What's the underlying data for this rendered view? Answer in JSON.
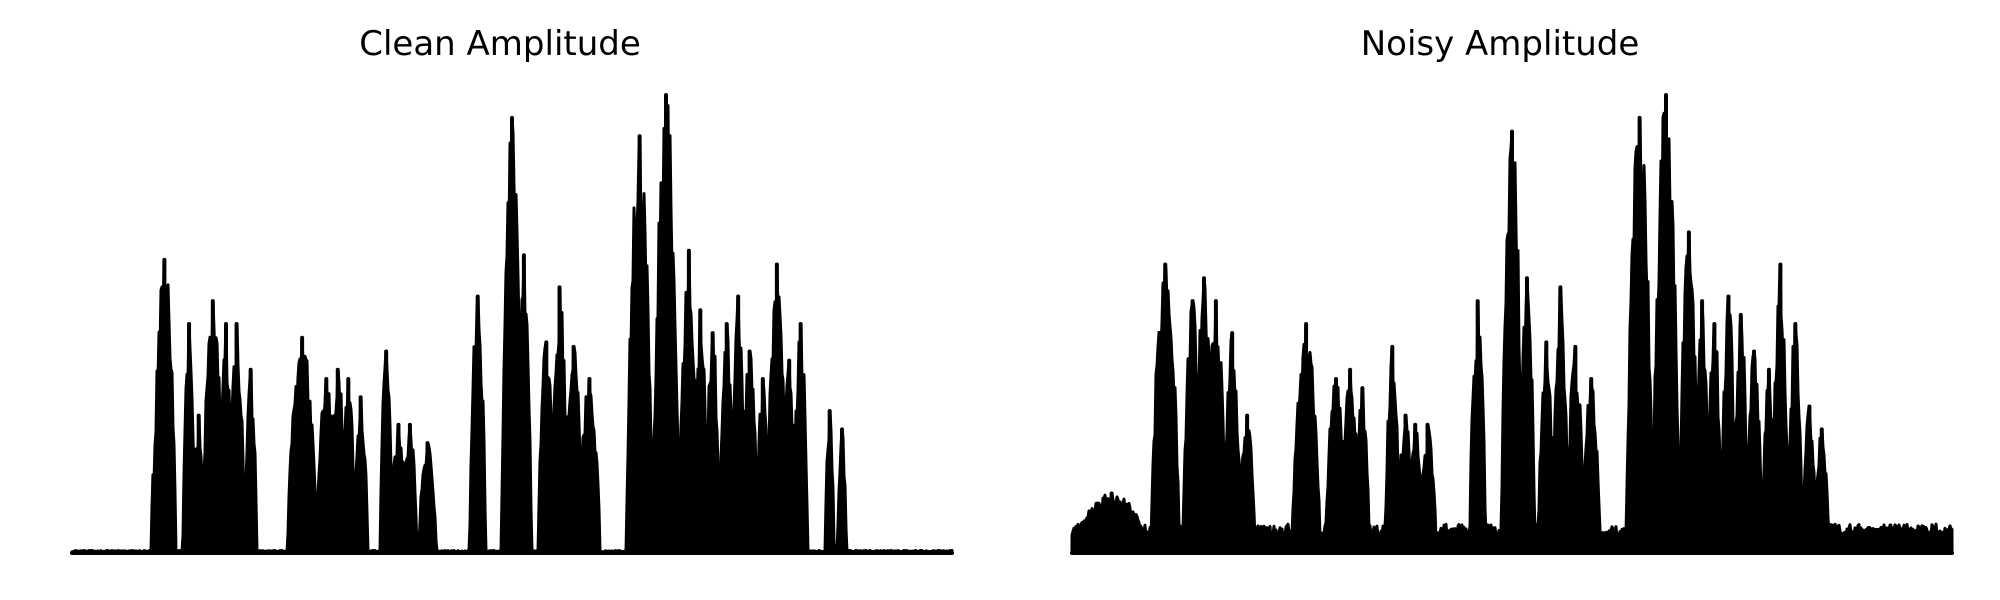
{
  "chart_data": [
    {
      "type": "area",
      "title": "Clean Amplitude",
      "xlabel": "",
      "ylabel": "",
      "axes_visible": false,
      "grid": false,
      "line_color": "#000000",
      "fill_color": "#000000",
      "x_range": [
        0,
        1
      ],
      "ylim": [
        0,
        1.0
      ],
      "noise_floor": 0.004,
      "bursts": [
        {
          "start": 0.09,
          "end": 0.095,
          "peak": 0.17
        },
        {
          "start": 0.092,
          "end": 0.118,
          "peak": 0.64
        },
        {
          "start": 0.126,
          "end": 0.14,
          "peak": 0.5
        },
        {
          "start": 0.138,
          "end": 0.15,
          "peak": 0.3
        },
        {
          "start": 0.148,
          "end": 0.172,
          "peak": 0.55
        },
        {
          "start": 0.168,
          "end": 0.182,
          "peak": 0.5
        },
        {
          "start": 0.178,
          "end": 0.196,
          "peak": 0.5
        },
        {
          "start": 0.196,
          "end": 0.21,
          "peak": 0.4
        },
        {
          "start": 0.245,
          "end": 0.278,
          "peak": 0.47
        },
        {
          "start": 0.278,
          "end": 0.3,
          "peak": 0.38
        },
        {
          "start": 0.292,
          "end": 0.312,
          "peak": 0.4
        },
        {
          "start": 0.306,
          "end": 0.322,
          "peak": 0.38
        },
        {
          "start": 0.32,
          "end": 0.336,
          "peak": 0.34
        },
        {
          "start": 0.35,
          "end": 0.364,
          "peak": 0.44
        },
        {
          "start": 0.362,
          "end": 0.38,
          "peak": 0.28
        },
        {
          "start": 0.376,
          "end": 0.392,
          "peak": 0.28
        },
        {
          "start": 0.394,
          "end": 0.414,
          "peak": 0.24
        },
        {
          "start": 0.452,
          "end": 0.47,
          "peak": 0.56
        },
        {
          "start": 0.488,
          "end": 0.512,
          "peak": 0.95
        },
        {
          "start": 0.505,
          "end": 0.522,
          "peak": 0.65
        },
        {
          "start": 0.53,
          "end": 0.548,
          "peak": 0.46
        },
        {
          "start": 0.544,
          "end": 0.564,
          "peak": 0.58
        },
        {
          "start": 0.56,
          "end": 0.58,
          "peak": 0.45
        },
        {
          "start": 0.576,
          "end": 0.6,
          "peak": 0.38
        },
        {
          "start": 0.63,
          "end": 0.66,
          "peak": 0.91
        },
        {
          "start": 0.66,
          "end": 0.69,
          "peak": 1.0
        },
        {
          "start": 0.69,
          "end": 0.712,
          "peak": 0.66
        },
        {
          "start": 0.706,
          "end": 0.722,
          "peak": 0.53
        },
        {
          "start": 0.72,
          "end": 0.736,
          "peak": 0.48
        },
        {
          "start": 0.736,
          "end": 0.752,
          "peak": 0.5
        },
        {
          "start": 0.75,
          "end": 0.764,
          "peak": 0.56
        },
        {
          "start": 0.76,
          "end": 0.78,
          "peak": 0.44
        },
        {
          "start": 0.778,
          "end": 0.792,
          "peak": 0.38
        },
        {
          "start": 0.79,
          "end": 0.812,
          "peak": 0.63
        },
        {
          "start": 0.808,
          "end": 0.822,
          "peak": 0.42
        },
        {
          "start": 0.82,
          "end": 0.836,
          "peak": 0.5
        },
        {
          "start": 0.856,
          "end": 0.866,
          "peak": 0.31
        },
        {
          "start": 0.87,
          "end": 0.88,
          "peak": 0.27
        }
      ]
    },
    {
      "type": "area",
      "title": "Noisy Amplitude",
      "xlabel": "",
      "ylabel": "",
      "axes_visible": false,
      "grid": false,
      "line_color": "#000000",
      "fill_color": "#000000",
      "x_range": [
        0,
        1
      ],
      "ylim": [
        0,
        1.0
      ],
      "noise_floor": 0.045,
      "bursts": [
        {
          "start": 0.0,
          "end": 0.09,
          "peak": 0.13
        },
        {
          "start": 0.09,
          "end": 0.122,
          "peak": 0.63
        },
        {
          "start": 0.126,
          "end": 0.148,
          "peak": 0.55
        },
        {
          "start": 0.14,
          "end": 0.16,
          "peak": 0.6
        },
        {
          "start": 0.152,
          "end": 0.175,
          "peak": 0.55
        },
        {
          "start": 0.172,
          "end": 0.192,
          "peak": 0.48
        },
        {
          "start": 0.19,
          "end": 0.208,
          "peak": 0.3
        },
        {
          "start": 0.25,
          "end": 0.282,
          "peak": 0.5
        },
        {
          "start": 0.288,
          "end": 0.312,
          "peak": 0.38
        },
        {
          "start": 0.304,
          "end": 0.328,
          "peak": 0.4
        },
        {
          "start": 0.322,
          "end": 0.338,
          "peak": 0.36
        },
        {
          "start": 0.356,
          "end": 0.372,
          "peak": 0.45
        },
        {
          "start": 0.37,
          "end": 0.388,
          "peak": 0.3
        },
        {
          "start": 0.382,
          "end": 0.398,
          "peak": 0.28
        },
        {
          "start": 0.394,
          "end": 0.414,
          "peak": 0.28
        },
        {
          "start": 0.452,
          "end": 0.47,
          "peak": 0.55
        },
        {
          "start": 0.488,
          "end": 0.512,
          "peak": 0.92
        },
        {
          "start": 0.508,
          "end": 0.526,
          "peak": 0.6
        },
        {
          "start": 0.53,
          "end": 0.548,
          "peak": 0.46
        },
        {
          "start": 0.546,
          "end": 0.564,
          "peak": 0.58
        },
        {
          "start": 0.562,
          "end": 0.582,
          "peak": 0.45
        },
        {
          "start": 0.58,
          "end": 0.6,
          "peak": 0.38
        },
        {
          "start": 0.63,
          "end": 0.66,
          "peak": 0.95
        },
        {
          "start": 0.66,
          "end": 0.69,
          "peak": 1.0
        },
        {
          "start": 0.69,
          "end": 0.712,
          "peak": 0.7
        },
        {
          "start": 0.708,
          "end": 0.724,
          "peak": 0.55
        },
        {
          "start": 0.722,
          "end": 0.738,
          "peak": 0.5
        },
        {
          "start": 0.738,
          "end": 0.754,
          "peak": 0.56
        },
        {
          "start": 0.752,
          "end": 0.768,
          "peak": 0.52
        },
        {
          "start": 0.766,
          "end": 0.784,
          "peak": 0.44
        },
        {
          "start": 0.784,
          "end": 0.8,
          "peak": 0.4
        },
        {
          "start": 0.796,
          "end": 0.814,
          "peak": 0.63
        },
        {
          "start": 0.814,
          "end": 0.83,
          "peak": 0.5
        },
        {
          "start": 0.83,
          "end": 0.846,
          "peak": 0.32
        },
        {
          "start": 0.844,
          "end": 0.86,
          "peak": 0.27
        },
        {
          "start": 0.86,
          "end": 1.0,
          "peak": 0.06
        }
      ]
    }
  ]
}
